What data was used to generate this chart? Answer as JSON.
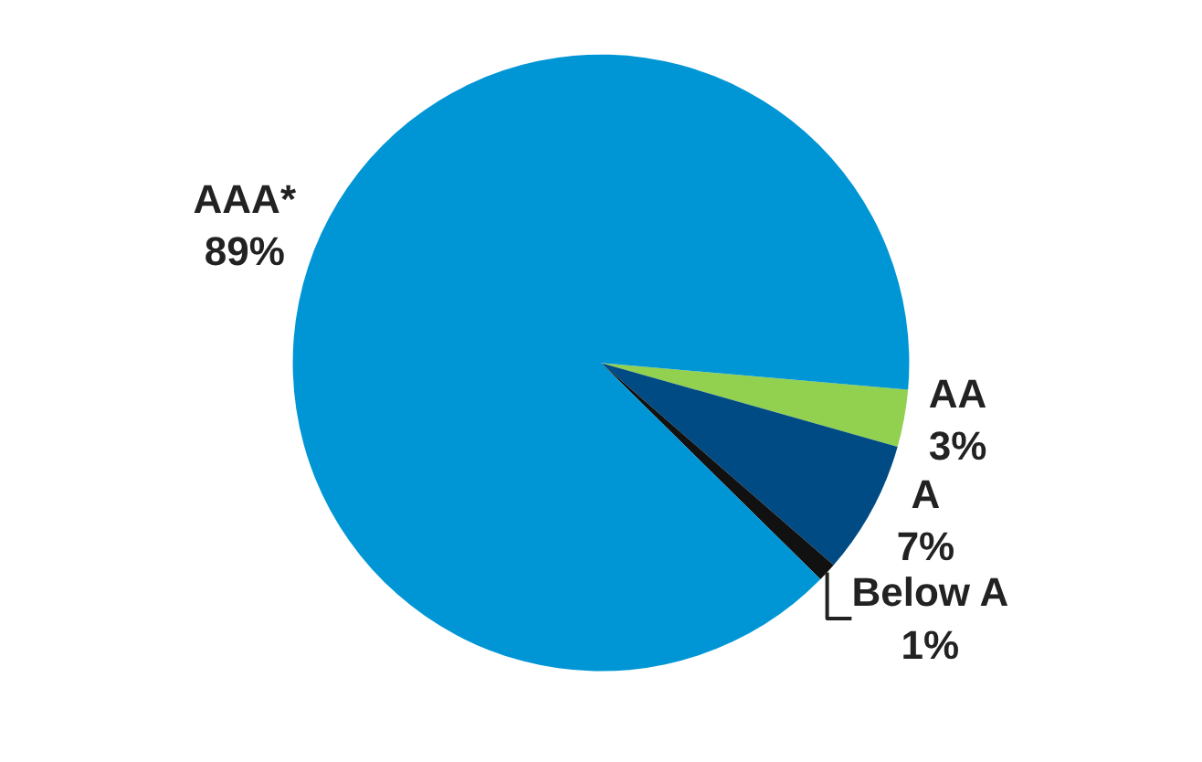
{
  "chart_data": {
    "type": "pie",
    "categories": [
      "AA",
      "A",
      "Below A",
      "AAA*"
    ],
    "values": [
      3,
      7,
      1,
      89
    ],
    "colors": [
      "#92d050",
      "#004b84",
      "#111111",
      "#0096d6"
    ],
    "value_labels": [
      "3%",
      "7%",
      "1%",
      "89%"
    ],
    "legend": false
  }
}
